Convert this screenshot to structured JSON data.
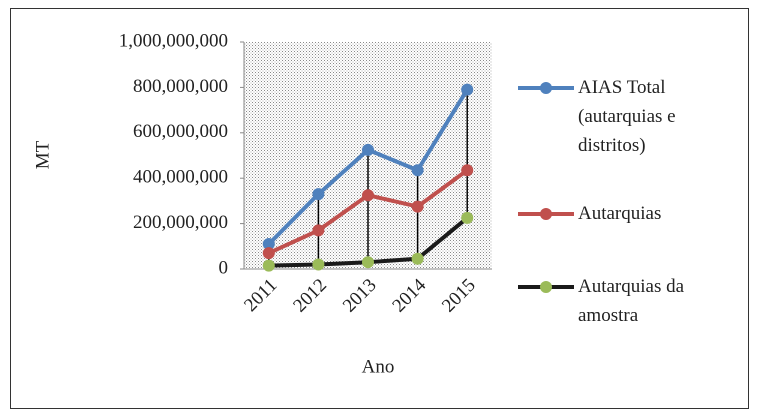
{
  "chart_data": {
    "type": "line",
    "ylabel": "MT",
    "xlabel": "Ano",
    "categories": [
      "2011",
      "2012",
      "2013",
      "2014",
      "2015"
    ],
    "series": [
      {
        "name": "AIAS Total (autarquias e distritos)",
        "color": "#4f81bd",
        "marker_color": "#4f81bd",
        "values": [
          110000000,
          330000000,
          525000000,
          435000000,
          790000000
        ]
      },
      {
        "name": "Autarquias",
        "color": "#c0504d",
        "marker_color": "#c0504d",
        "values": [
          70000000,
          170000000,
          325000000,
          275000000,
          435000000
        ]
      },
      {
        "name": "Autarquias da amostra",
        "color": "#1a1a1a",
        "marker_color": "#9bbb59",
        "values": [
          15000000,
          20000000,
          30000000,
          45000000,
          225000000
        ]
      }
    ],
    "ylim": [
      0,
      1000000000
    ],
    "yticks": [
      {
        "value": 0,
        "label": "0"
      },
      {
        "value": 200000000,
        "label": "200,000,000"
      },
      {
        "value": 400000000,
        "label": "400,000,000"
      },
      {
        "value": 600000000,
        "label": "600,000,000"
      },
      {
        "value": 800000000,
        "label": "800,000,000"
      },
      {
        "value": 1000000000,
        "label": "1,000,000,000"
      }
    ],
    "high_low_lines": true,
    "legend": "right"
  }
}
